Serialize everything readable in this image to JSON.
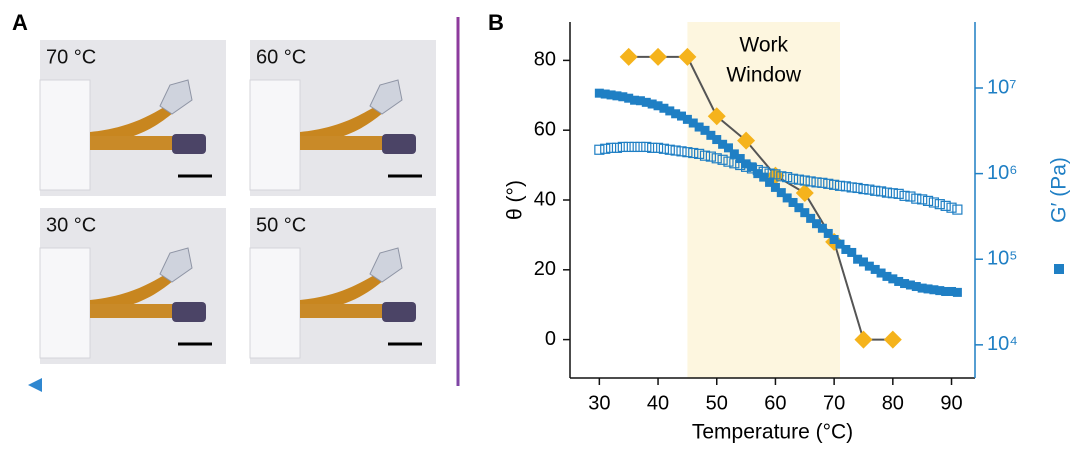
{
  "panel_a": {
    "label": "A",
    "images": [
      {
        "label": "70 °C"
      },
      {
        "label": "60 °C"
      },
      {
        "label": "30 °C"
      },
      {
        "label": "50 °C"
      }
    ]
  },
  "chart_data": {
    "type": "scatter",
    "panel_label": "B",
    "xlabel": "Temperature (°C)",
    "ylabel": "θ (°)",
    "y2label": "G′ (Pa)",
    "xlim": [
      25,
      94
    ],
    "xticks": [
      30,
      40,
      50,
      60,
      70,
      80,
      90
    ],
    "ylim": [
      -11,
      91
    ],
    "yticks": [
      0,
      20,
      40,
      60,
      80
    ],
    "y2lim": [
      4100,
      59000000
    ],
    "y2scale": "log",
    "y2ticks": [
      {
        "value": 10000,
        "label": "10⁴"
      },
      {
        "value": 100000,
        "label": "10⁵"
      },
      {
        "value": 1000000,
        "label": "10⁶"
      },
      {
        "value": 10000000,
        "label": "10⁷"
      }
    ],
    "highlight": {
      "lines": [
        "Work",
        "Window"
      ],
      "range": [
        45,
        71
      ],
      "color": "#fdf6df"
    },
    "series": [
      {
        "marker": "diamond",
        "color": "#f5b31c",
        "line_color": "#555555",
        "x": [
          35,
          40,
          45,
          50,
          55,
          60,
          65,
          70,
          75,
          80
        ],
        "values": [
          81,
          81,
          81,
          64,
          57,
          47,
          42,
          28,
          0,
          0
        ]
      },
      {
        "marker": "square",
        "filled": true,
        "axis": "y2",
        "color": "#1f7fc4",
        "x": [
          30,
          31,
          32,
          33,
          34,
          35,
          36,
          37,
          38,
          39,
          40,
          41,
          42,
          43,
          44,
          45,
          46,
          47,
          48,
          49,
          50,
          51,
          52,
          53,
          54,
          55,
          56,
          57,
          58,
          59,
          60,
          61,
          62,
          63,
          64,
          65,
          66,
          67,
          68,
          69,
          70,
          71,
          72,
          73,
          74,
          75,
          76,
          77,
          78,
          79,
          80,
          81,
          82,
          83,
          84,
          85,
          86,
          87,
          88,
          89,
          90,
          91
        ],
        "values": [
          8700000,
          8500000,
          8300000,
          8100000,
          7900000,
          7600000,
          7200000,
          7100000,
          6800000,
          6500000,
          6200000,
          5800000,
          5400000,
          5000000,
          4700000,
          4300000,
          3900000,
          3500000,
          3200000,
          2800000,
          2500000,
          2200000,
          2000000,
          1700000,
          1500000,
          1300000,
          1200000,
          1000000,
          910000,
          790000,
          690000,
          600000,
          520000,
          460000,
          400000,
          350000,
          300000,
          260000,
          230000,
          200000,
          170000,
          150000,
          130000,
          120000,
          100000,
          93000,
          83000,
          76000,
          69000,
          63000,
          59000,
          55000,
          52000,
          50000,
          48000,
          46000,
          45000,
          44000,
          43000,
          42000,
          42000,
          41000
        ]
      },
      {
        "marker": "square",
        "filled": false,
        "axis": "y2",
        "color": "#1f7fc4",
        "x": [
          30,
          31,
          32,
          33,
          34,
          35,
          36,
          37,
          38,
          39,
          40,
          41,
          42,
          43,
          44,
          45,
          46,
          47,
          48,
          49,
          50,
          51,
          52,
          53,
          54,
          55,
          56,
          57,
          58,
          59,
          60,
          61,
          62,
          63,
          64,
          65,
          66,
          67,
          68,
          69,
          70,
          71,
          72,
          73,
          74,
          75,
          76,
          77,
          78,
          79,
          80,
          81,
          82,
          83,
          84,
          85,
          86,
          87,
          88,
          89,
          90,
          91
        ],
        "values": [
          1900000,
          1950000,
          2000000,
          2000000,
          2050000,
          2050000,
          2050000,
          2050000,
          2050000,
          2000000,
          2000000,
          1950000,
          1900000,
          1860000,
          1820000,
          1780000,
          1740000,
          1700000,
          1620000,
          1580000,
          1510000,
          1450000,
          1380000,
          1320000,
          1260000,
          1200000,
          1150000,
          1100000,
          1050000,
          1000000,
          980000,
          930000,
          910000,
          870000,
          850000,
          830000,
          810000,
          790000,
          780000,
          760000,
          740000,
          720000,
          710000,
          690000,
          680000,
          660000,
          650000,
          630000,
          620000,
          600000,
          590000,
          580000,
          550000,
          540000,
          510000,
          500000,
          480000,
          460000,
          440000,
          420000,
          400000,
          380000
        ]
      }
    ]
  }
}
